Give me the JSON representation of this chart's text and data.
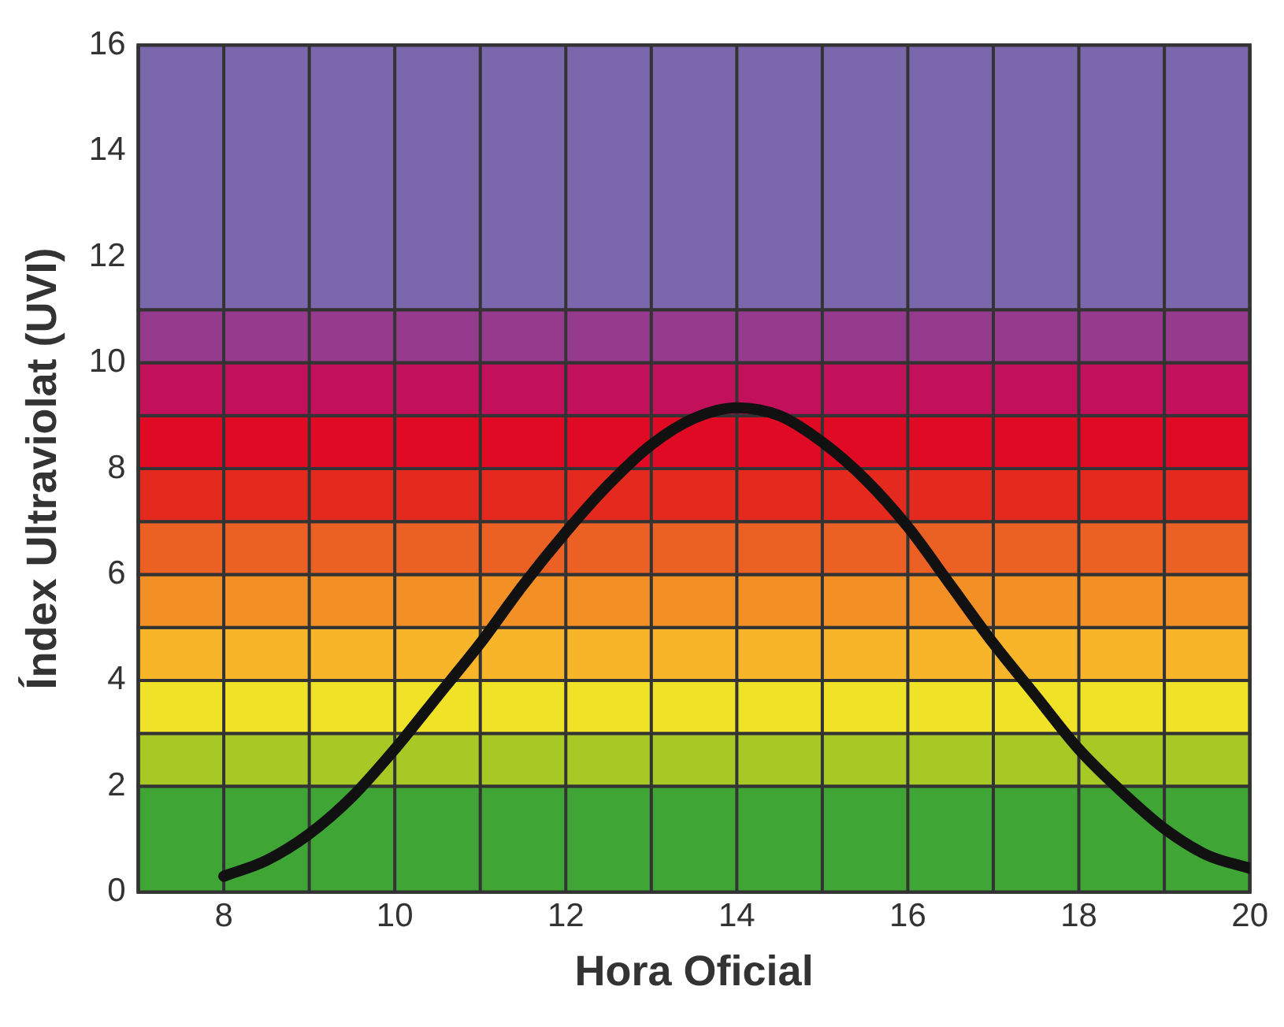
{
  "chart_data": {
    "type": "line",
    "xlabel": "Hora Oficial",
    "ylabel": "Índex Ultraviolat (UVI)",
    "x": [
      8,
      8.5,
      9,
      9.5,
      10,
      10.5,
      11,
      11.5,
      12,
      12.5,
      13,
      13.5,
      14,
      14.5,
      15,
      15.5,
      16,
      16.5,
      17,
      17.5,
      18,
      18.5,
      19,
      19.5,
      20
    ],
    "series": [
      {
        "color": "#111111",
        "values": [
          0.3,
          0.6,
          1.1,
          1.8,
          2.7,
          3.7,
          4.7,
          5.8,
          6.8,
          7.7,
          8.45,
          8.95,
          9.15,
          9.0,
          8.5,
          7.8,
          6.9,
          5.8,
          4.7,
          3.7,
          2.7,
          1.9,
          1.2,
          0.7,
          0.45
        ]
      }
    ],
    "xlim": [
      7,
      20
    ],
    "ylim": [
      0,
      16
    ],
    "xticks": [
      {
        "value": 7,
        "label": null
      },
      8,
      {
        "value": 9,
        "label": null
      },
      10,
      {
        "value": 11,
        "label": null
      },
      12,
      {
        "value": 13,
        "label": null
      },
      14,
      {
        "value": 15,
        "label": null
      },
      16,
      {
        "value": 17,
        "label": null
      },
      18,
      {
        "value": 19,
        "label": null
      },
      20
    ],
    "yticks": [
      0,
      2,
      4,
      6,
      8,
      10,
      12,
      14,
      16
    ],
    "bands": [
      {
        "axis": "y",
        "from": 0,
        "to": 2,
        "color": "#3fa535"
      },
      {
        "axis": "y",
        "from": 2,
        "to": 3,
        "color": "#a8c826"
      },
      {
        "axis": "y",
        "from": 3,
        "to": 4,
        "color": "#f0e226"
      },
      {
        "axis": "y",
        "from": 4,
        "to": 5,
        "color": "#f8b52a"
      },
      {
        "axis": "y",
        "from": 5,
        "to": 6,
        "color": "#f29025"
      },
      {
        "axis": "y",
        "from": 6,
        "to": 7,
        "color": "#eb6124"
      },
      {
        "axis": "y",
        "from": 7,
        "to": 8,
        "color": "#e42a1e"
      },
      {
        "axis": "y",
        "from": 8,
        "to": 9,
        "color": "#e10a24"
      },
      {
        "axis": "y",
        "from": 9,
        "to": 10,
        "color": "#c2105a"
      },
      {
        "axis": "y",
        "from": 10,
        "to": 11,
        "color": "#953a8c"
      },
      {
        "axis": "y",
        "from": 11,
        "to": 16,
        "color": "#7b67ab"
      }
    ],
    "grid": "x",
    "legend": false,
    "marker": "none",
    "line_style": "solid"
  }
}
